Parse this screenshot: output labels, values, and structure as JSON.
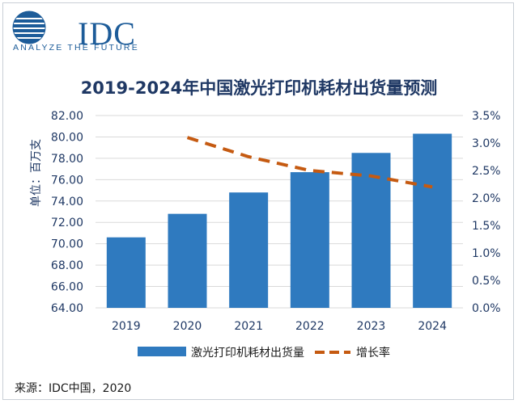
{
  "brand": {
    "logo_text": "IDC",
    "tagline": "ANALYZE THE FUTURE",
    "color": "#1d5c99"
  },
  "source": "来源：IDC中国，2020",
  "colors": {
    "bar": "#2f7abf",
    "line": "#c55a11",
    "title": "#1f3864",
    "axis_text": "#1f3864",
    "grid": "#d9d9d9"
  },
  "chart_data": {
    "type": "bar",
    "title": "2019-2024年中国激光打印机耗材出货量预测",
    "ylabel": "单位：百万支",
    "categories": [
      "2019",
      "2020",
      "2021",
      "2022",
      "2023",
      "2024"
    ],
    "ylim": [
      64,
      82
    ],
    "yticks": [
      "82.00",
      "80.00",
      "78.00",
      "76.00",
      "74.00",
      "72.00",
      "70.00",
      "68.00",
      "66.00",
      "64.00"
    ],
    "y2lim": [
      0,
      3.5
    ],
    "y2ticks": [
      "3.5%",
      "3.0%",
      "2.5%",
      "2.0%",
      "1.5%",
      "1.0%",
      "0.5%",
      "0.0%"
    ],
    "grid": true,
    "legend_position": "bottom",
    "series": [
      {
        "name": "激光打印机耗材出货量",
        "type": "bar",
        "axis": "left",
        "values": [
          70.6,
          72.8,
          74.8,
          76.7,
          78.5,
          80.3
        ]
      },
      {
        "name": "增长率",
        "type": "line",
        "style": "dashed",
        "axis": "right",
        "values": [
          null,
          3.1,
          2.75,
          2.5,
          2.4,
          2.2
        ]
      }
    ]
  }
}
